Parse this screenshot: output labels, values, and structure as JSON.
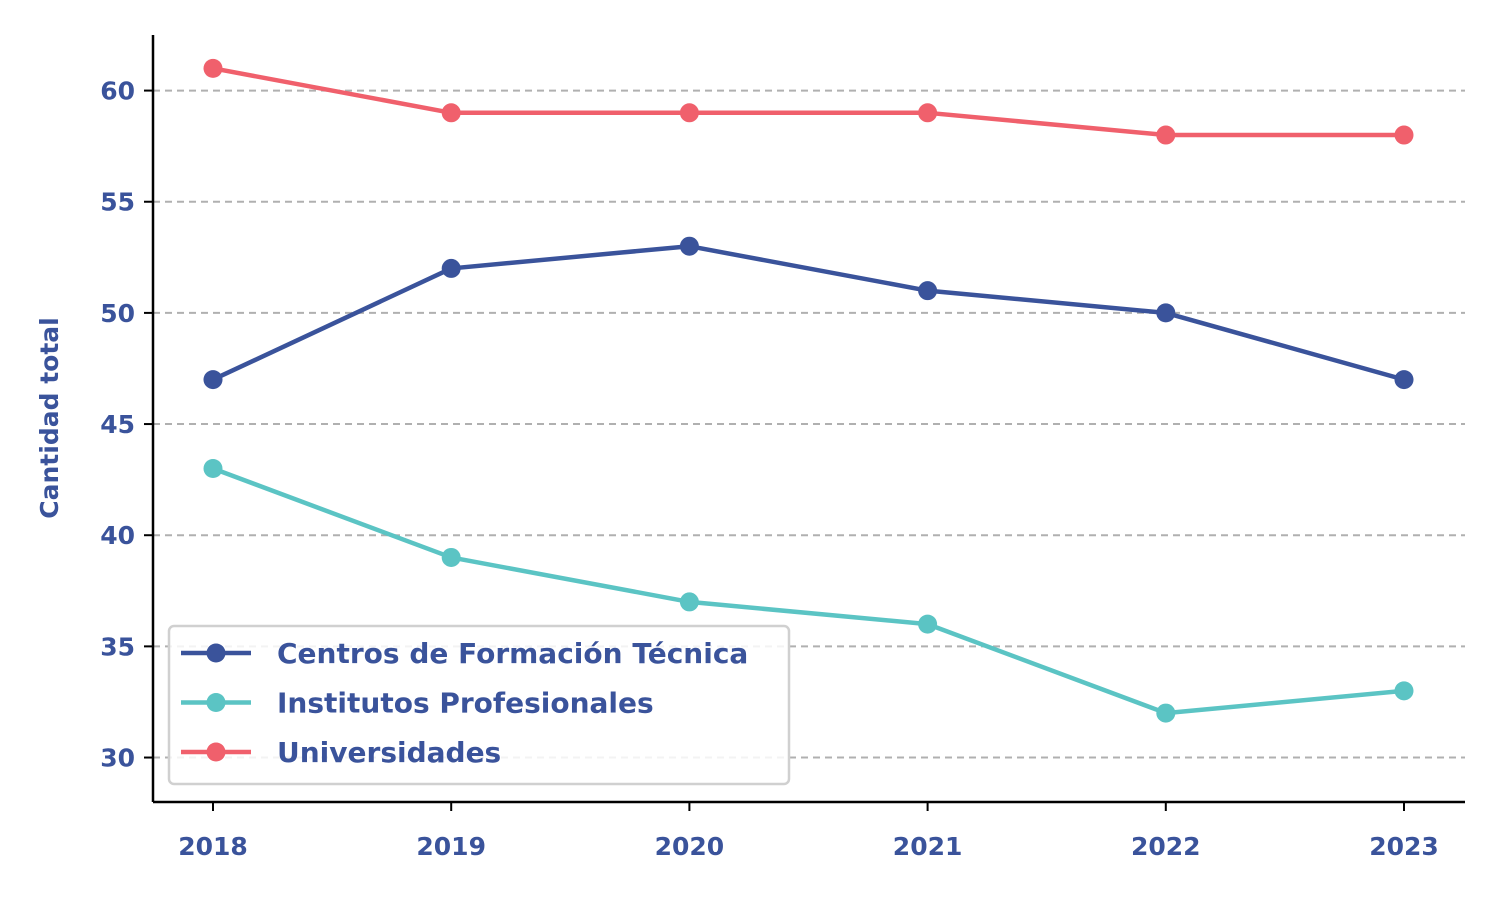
{
  "chart_data": {
    "type": "line",
    "title": "",
    "xlabel": "",
    "ylabel": "Cantidad total",
    "x": [
      "2018",
      "2019",
      "2020",
      "2021",
      "2022",
      "2023"
    ],
    "ylim": [
      28,
      62.5
    ],
    "yticks": [
      30,
      35,
      40,
      45,
      50,
      55,
      60
    ],
    "grid": "y-dashed",
    "legend_position": "bottom-left",
    "series": [
      {
        "name": "Centros de Formación Técnica",
        "color": "#3a539b",
        "values": [
          47,
          52,
          53,
          51,
          50,
          47
        ]
      },
      {
        "name": "Institutos Profesionales",
        "color": "#5bc4c4",
        "values": [
          43,
          39,
          37,
          36,
          32,
          33
        ]
      },
      {
        "name": "Universidades",
        "color": "#f0606c",
        "values": [
          61,
          59,
          59,
          59,
          58,
          58
        ]
      }
    ]
  }
}
